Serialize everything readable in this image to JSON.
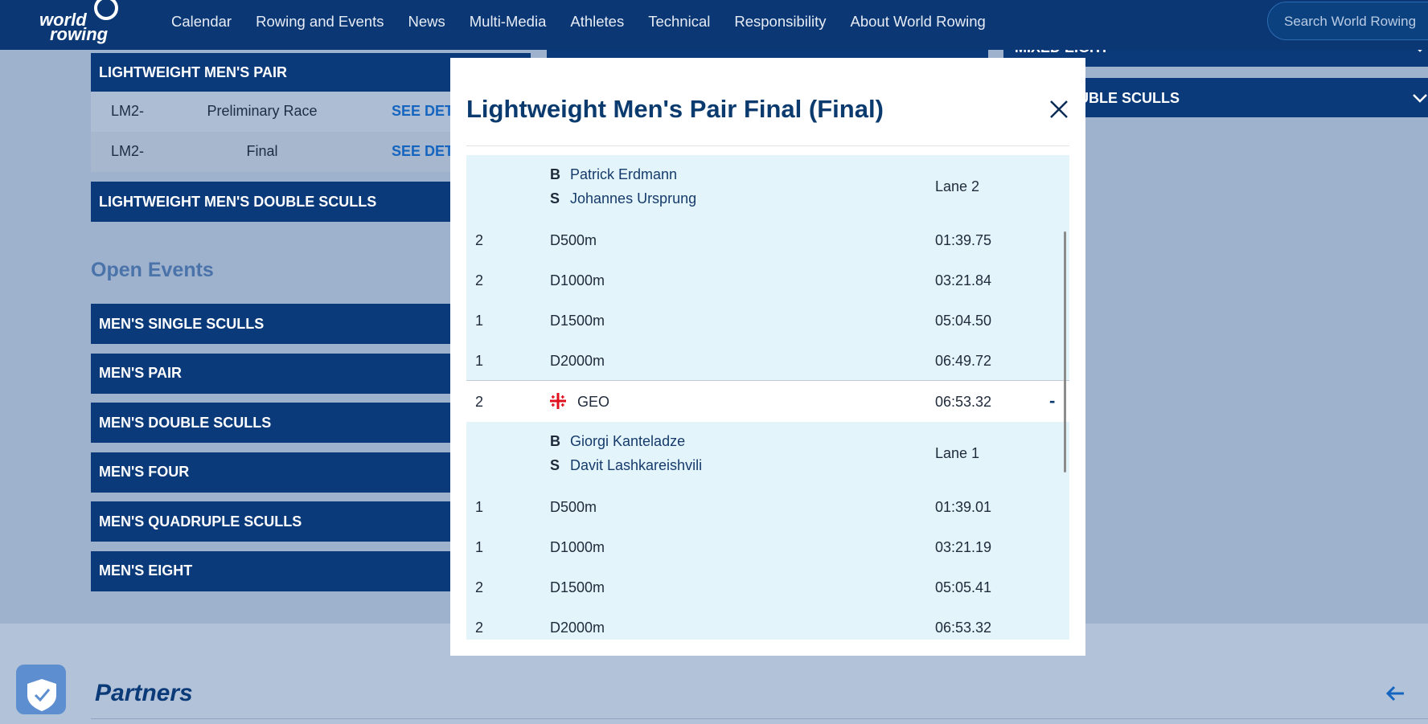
{
  "header": {
    "logo": [
      "world",
      "rowing"
    ],
    "nav": [
      "Calendar",
      "Rowing and Events",
      "News",
      "Multi-Media",
      "Athletes",
      "Technical",
      "Responsibility",
      "About World Rowing"
    ],
    "search_placeholder": "Search World Rowing"
  },
  "page": {
    "lightweight_pair": {
      "title": "LIGHTWEIGHT MEN'S PAIR",
      "rows": [
        [
          "LM2-",
          "Preliminary Race",
          "SEE DETAILS"
        ],
        [
          "LM2-",
          "Final",
          "SEE DETAILS"
        ]
      ]
    },
    "lightweight_double": "LIGHTWEIGHT MEN'S DOUBLE SCULLS",
    "open_events": {
      "title": "Open Events",
      "items": [
        "MEN'S SINGLE SCULLS",
        "MEN'S PAIR",
        "MEN'S DOUBLE SCULLS",
        "MEN'S FOUR",
        "MEN'S QUADRUPLE SCULLS",
        "MEN'S EIGHT"
      ]
    },
    "right_column": [
      "MIXED EIGHT",
      "DOUBLE SCULLS"
    ],
    "partners": "Partners"
  },
  "modal": {
    "title": "Lightweight Men's Pair Final (Final)",
    "entries": [
      {
        "crew": [
          [
            "B",
            "Patrick Erdmann"
          ],
          [
            "S",
            "Johannes Ursprung"
          ]
        ],
        "lane": "Lane 2",
        "splits": [
          [
            "2",
            "D500m",
            "01:39.75"
          ],
          [
            "2",
            "D1000m",
            "03:21.84"
          ],
          [
            "1",
            "D1500m",
            "05:04.50"
          ],
          [
            "1",
            "D2000m",
            "06:49.72"
          ]
        ]
      },
      {
        "result": {
          "rank": "2",
          "country": "GEO",
          "time": "06:53.32",
          "toggle": "-"
        },
        "crew": [
          [
            "B",
            "Giorgi Kanteladze"
          ],
          [
            "S",
            "Davit Lashkareishvili"
          ]
        ],
        "lane": "Lane 1",
        "splits": [
          [
            "1",
            "D500m",
            "01:39.01"
          ],
          [
            "1",
            "D1000m",
            "03:21.19"
          ],
          [
            "2",
            "D1500m",
            "05:05.41"
          ],
          [
            "2",
            "D2000m",
            "06:53.32"
          ]
        ]
      }
    ]
  }
}
